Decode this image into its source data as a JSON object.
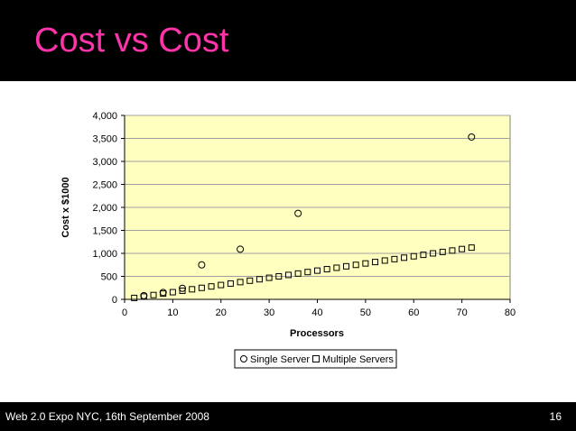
{
  "slide": {
    "title": "Cost vs Cost",
    "footer": "Web 2.0 Expo NYC, 16th September 2008",
    "page_number": "16"
  },
  "colors": {
    "title": "#ff33aa",
    "plot_background": "#ffffc0",
    "header_footer": "#000000"
  },
  "chart_data": {
    "type": "scatter",
    "xlabel": "Processors",
    "ylabel": "Cost x $1000",
    "xlim": [
      0,
      80
    ],
    "ylim": [
      0,
      4000
    ],
    "x_ticks": [
      0,
      10,
      20,
      30,
      40,
      50,
      60,
      70,
      80
    ],
    "y_ticks": [
      0,
      500,
      1000,
      1500,
      2000,
      2500,
      3000,
      3500,
      4000
    ],
    "x_tick_labels": [
      "0",
      "10",
      "20",
      "30",
      "40",
      "50",
      "60",
      "70",
      "80"
    ],
    "y_tick_labels": [
      "0",
      "500",
      "1,000",
      "1,500",
      "2,000",
      "2,500",
      "3,000",
      "3,500",
      "4,000"
    ],
    "grid": "horizontal",
    "legend_position": "bottom",
    "series": [
      {
        "name": "Single Server",
        "marker": "circle",
        "x": [
          4,
          8,
          12,
          16,
          24,
          36,
          72
        ],
        "y": [
          80,
          150,
          240,
          750,
          1090,
          1870,
          3530
        ]
      },
      {
        "name": "Multiple Servers",
        "marker": "square",
        "x": [
          2,
          4,
          6,
          8,
          10,
          12,
          14,
          16,
          18,
          20,
          22,
          24,
          26,
          28,
          30,
          32,
          34,
          36,
          38,
          40,
          42,
          44,
          46,
          48,
          50,
          52,
          54,
          56,
          58,
          60,
          62,
          64,
          66,
          68,
          70,
          72
        ],
        "y": [
          31,
          62,
          94,
          125,
          156,
          187,
          219,
          250,
          281,
          312,
          344,
          375,
          406,
          437,
          469,
          500,
          531,
          562,
          594,
          625,
          656,
          687,
          719,
          750,
          781,
          812,
          844,
          875,
          906,
          937,
          969,
          1000,
          1031,
          1062,
          1094,
          1125
        ]
      }
    ]
  }
}
